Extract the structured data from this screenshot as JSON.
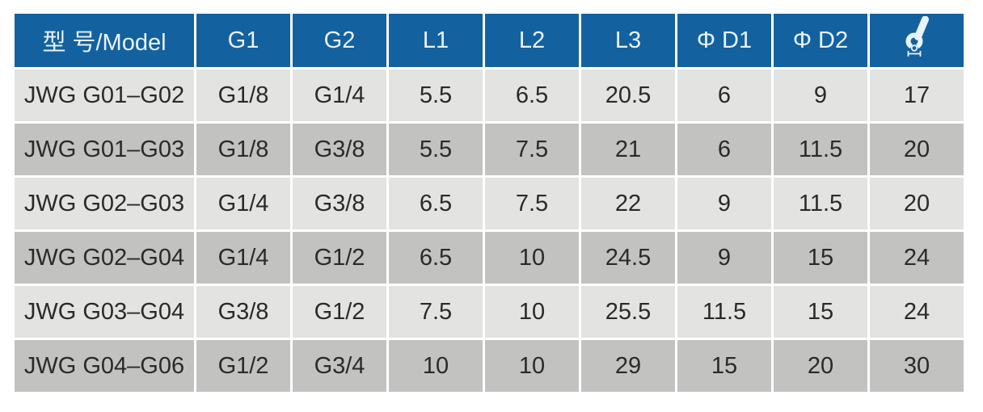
{
  "colors": {
    "header_bg": "#14619f",
    "header_text": "#e9f3fa",
    "row_light": "#e3e3e1",
    "row_dark": "#c2c2c0",
    "cell_text": "#2a2a2a",
    "page_bg": "#ffffff"
  },
  "table": {
    "columns": [
      "model",
      "g1",
      "g2",
      "l1",
      "l2",
      "l3",
      "d1",
      "d2",
      "wrench-size"
    ],
    "headers": [
      {
        "label": "型 号/Model"
      },
      {
        "label": "G1"
      },
      {
        "label": "G2"
      },
      {
        "label": "L1"
      },
      {
        "label": "L2"
      },
      {
        "label": "L3"
      },
      {
        "label": "Φ D1"
      },
      {
        "label": "Φ D2"
      },
      {
        "label": "",
        "icon": "wrench-size-icon"
      }
    ],
    "rows": [
      {
        "cells": [
          "JWG G01–G02",
          "G1/8",
          "G1/4",
          "5.5",
          "6.5",
          "20.5",
          "6",
          "9",
          "17"
        ]
      },
      {
        "cells": [
          "JWG G01–G03",
          "G1/8",
          "G3/8",
          "5.5",
          "7.5",
          "21",
          "6",
          "11.5",
          "20"
        ]
      },
      {
        "cells": [
          "JWG G02–G03",
          "G1/4",
          "G3/8",
          "6.5",
          "7.5",
          "22",
          "9",
          "11.5",
          "20"
        ]
      },
      {
        "cells": [
          "JWG G02–G04",
          "G1/4",
          "G1/2",
          "6.5",
          "10",
          "24.5",
          "9",
          "15",
          "24"
        ]
      },
      {
        "cells": [
          "JWG G03–G04",
          "G3/8",
          "G1/2",
          "7.5",
          "10",
          "25.5",
          "11.5",
          "15",
          "24"
        ]
      },
      {
        "cells": [
          "JWG G04–G06",
          "G1/2",
          "G3/4",
          "10",
          "10",
          "29",
          "15",
          "20",
          "30"
        ]
      }
    ]
  }
}
